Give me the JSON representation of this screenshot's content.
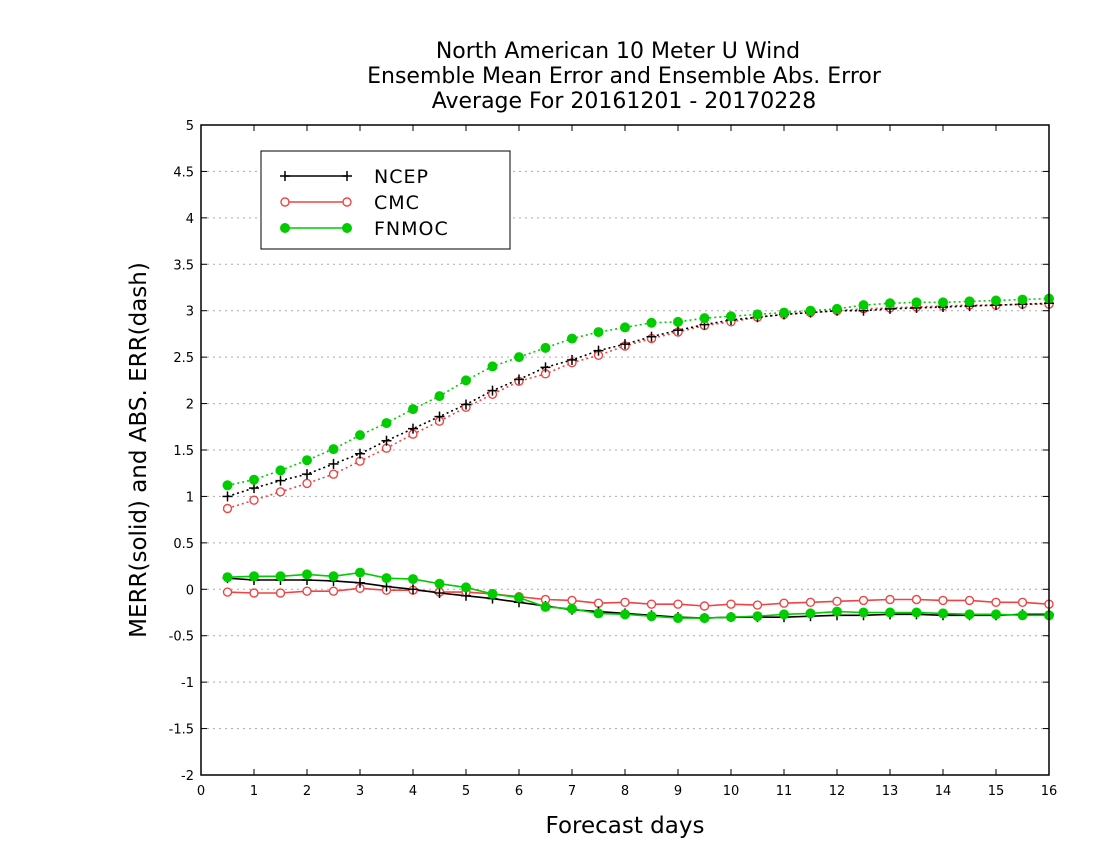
{
  "chart_data": {
    "type": "line",
    "title": [
      "North American 10 Meter U Wind",
      "Ensemble Mean Error and Ensemble Abs. Error",
      "Average For 20161201 - 20170228"
    ],
    "xlabel": "Forecast days",
    "ylabel": "MERR(solid) and ABS. ERR(dash)",
    "xlim": [
      0,
      16
    ],
    "ylim": [
      -2,
      5
    ],
    "xticks": [
      "0",
      "1",
      "2",
      "3",
      "4",
      "5",
      "6",
      "7",
      "8",
      "9",
      "10",
      "11",
      "12",
      "13",
      "14",
      "15",
      "16"
    ],
    "yticks": [
      "5",
      "4.5",
      "4",
      "3.5",
      "3",
      "2.5",
      "2",
      "1.5",
      "1",
      "0.5",
      "0",
      "-0.5",
      "-1",
      "-1.5",
      "-2"
    ],
    "grid": "horizontal dotted",
    "legend_position": "top-left",
    "x": [
      0.5,
      1,
      1.5,
      2,
      2.5,
      3,
      3.5,
      4,
      4.5,
      5,
      5.5,
      6,
      6.5,
      7,
      7.5,
      8,
      8.5,
      9,
      9.5,
      10,
      10.5,
      11,
      11.5,
      12,
      12.5,
      13,
      13.5,
      14,
      14.5,
      15,
      15.5,
      16
    ],
    "series": [
      {
        "name": "NCEP",
        "color": "#000000",
        "marker": "plus",
        "merr": [
          0.12,
          0.1,
          0.1,
          0.1,
          0.09,
          0.07,
          0.03,
          0.0,
          -0.04,
          -0.07,
          -0.1,
          -0.14,
          -0.18,
          -0.22,
          -0.24,
          -0.26,
          -0.28,
          -0.3,
          -0.31,
          -0.3,
          -0.3,
          -0.3,
          -0.29,
          -0.28,
          -0.28,
          -0.27,
          -0.27,
          -0.28,
          -0.28,
          -0.28,
          -0.27,
          -0.27
        ],
        "abs_err": [
          1.0,
          1.09,
          1.17,
          1.24,
          1.35,
          1.46,
          1.6,
          1.73,
          1.86,
          1.99,
          2.14,
          2.26,
          2.39,
          2.47,
          2.57,
          2.64,
          2.72,
          2.79,
          2.85,
          2.9,
          2.93,
          2.96,
          2.98,
          3.0,
          3.0,
          3.02,
          3.03,
          3.04,
          3.05,
          3.06,
          3.07,
          3.08
        ]
      },
      {
        "name": "CMC",
        "color": "#ee4444",
        "marker": "open-circle",
        "merr": [
          -0.03,
          -0.04,
          -0.04,
          -0.02,
          -0.02,
          0.01,
          -0.01,
          -0.01,
          -0.03,
          -0.03,
          -0.05,
          -0.08,
          -0.11,
          -0.12,
          -0.15,
          -0.14,
          -0.16,
          -0.16,
          -0.18,
          -0.16,
          -0.17,
          -0.15,
          -0.14,
          -0.13,
          -0.12,
          -0.11,
          -0.11,
          -0.12,
          -0.12,
          -0.14,
          -0.14,
          -0.16
        ],
        "abs_err": [
          0.87,
          0.96,
          1.05,
          1.14,
          1.24,
          1.38,
          1.52,
          1.67,
          1.81,
          1.96,
          2.1,
          2.24,
          2.32,
          2.44,
          2.52,
          2.62,
          2.7,
          2.77,
          2.84,
          2.88,
          2.93,
          2.96,
          2.98,
          3.0,
          3.02,
          3.03,
          3.04,
          3.05,
          3.06,
          3.06,
          3.07,
          3.07
        ]
      },
      {
        "name": "FNMOC",
        "color": "#00cc00",
        "marker": "filled-circle",
        "merr": [
          0.13,
          0.14,
          0.14,
          0.16,
          0.14,
          0.18,
          0.12,
          0.11,
          0.06,
          0.02,
          -0.05,
          -0.09,
          -0.19,
          -0.21,
          -0.26,
          -0.27,
          -0.29,
          -0.31,
          -0.31,
          -0.3,
          -0.29,
          -0.27,
          -0.26,
          -0.24,
          -0.25,
          -0.25,
          -0.25,
          -0.26,
          -0.27,
          -0.27,
          -0.28,
          -0.28
        ],
        "abs_err": [
          1.12,
          1.18,
          1.28,
          1.39,
          1.51,
          1.66,
          1.79,
          1.94,
          2.08,
          2.25,
          2.4,
          2.5,
          2.6,
          2.7,
          2.77,
          2.82,
          2.87,
          2.88,
          2.92,
          2.94,
          2.96,
          2.98,
          3.0,
          3.02,
          3.06,
          3.08,
          3.09,
          3.09,
          3.1,
          3.11,
          3.12,
          3.13
        ]
      }
    ]
  }
}
